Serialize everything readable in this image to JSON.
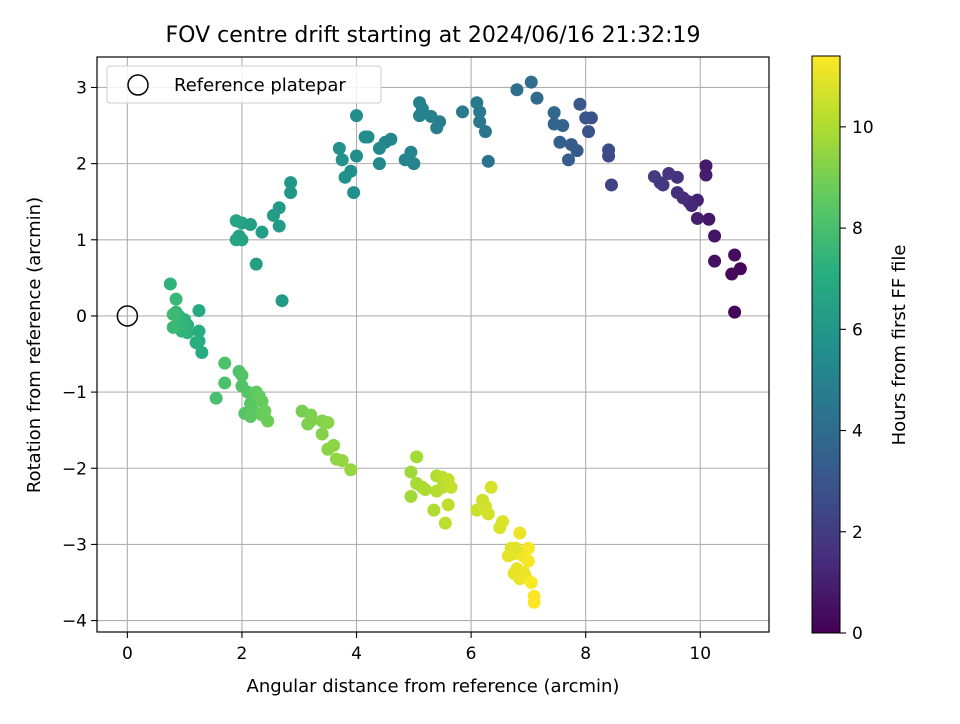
{
  "chart_data": {
    "type": "scatter",
    "title": "FOV centre drift starting at 2024/06/16 21:32:19",
    "xlabel": "Angular distance from reference (arcmin)",
    "ylabel": "Rotation from reference (arcmin)",
    "xlim": [
      -0.53,
      11.2
    ],
    "ylim": [
      -4.15,
      3.4
    ],
    "xticks": [
      0,
      2,
      4,
      6,
      8,
      10
    ],
    "yticks": [
      -4,
      -3,
      -2,
      -1,
      0,
      1,
      2,
      3
    ],
    "grid": true,
    "legend": {
      "position": "top-left",
      "entries": [
        "Reference platepar"
      ]
    },
    "reference_point": {
      "x": 0,
      "y": 0
    },
    "colorbar": {
      "label": "Hours from first FF file",
      "range": [
        0,
        11.4
      ],
      "ticks": [
        0,
        2,
        4,
        6,
        8,
        10
      ],
      "colormap": "viridis"
    },
    "points": [
      [
        10.6,
        0.05,
        0.1
      ],
      [
        10.7,
        0.62,
        0.2
      ],
      [
        10.55,
        0.55,
        0.3
      ],
      [
        10.6,
        0.8,
        0.4
      ],
      [
        10.25,
        0.72,
        0.5
      ],
      [
        10.25,
        1.05,
        0.6
      ],
      [
        10.15,
        1.27,
        0.7
      ],
      [
        10.1,
        1.97,
        0.8
      ],
      [
        10.1,
        1.85,
        0.9
      ],
      [
        9.95,
        1.28,
        1.0
      ],
      [
        9.95,
        1.52,
        1.1
      ],
      [
        9.85,
        1.45,
        1.2
      ],
      [
        9.8,
        1.5,
        1.3
      ],
      [
        9.7,
        1.55,
        1.4
      ],
      [
        9.6,
        1.62,
        1.5
      ],
      [
        9.6,
        1.82,
        1.6
      ],
      [
        9.45,
        1.87,
        1.7
      ],
      [
        9.35,
        1.72,
        1.8
      ],
      [
        9.3,
        1.75,
        1.9
      ],
      [
        9.2,
        1.83,
        2.0
      ],
      [
        8.45,
        1.72,
        2.3
      ],
      [
        8.4,
        2.1,
        2.5
      ],
      [
        8.4,
        2.18,
        2.6
      ],
      [
        8.1,
        2.6,
        2.8
      ],
      [
        8.05,
        2.42,
        2.9
      ],
      [
        8.0,
        2.6,
        3.0
      ],
      [
        7.9,
        2.78,
        3.1
      ],
      [
        7.85,
        2.17,
        3.2
      ],
      [
        7.75,
        2.25,
        3.3
      ],
      [
        7.7,
        2.05,
        3.4
      ],
      [
        7.55,
        2.28,
        3.5
      ],
      [
        7.6,
        2.5,
        3.6
      ],
      [
        7.45,
        2.52,
        3.7
      ],
      [
        7.45,
        2.67,
        3.8
      ],
      [
        7.15,
        2.86,
        3.9
      ],
      [
        7.05,
        3.07,
        4.0
      ],
      [
        6.8,
        2.97,
        4.1
      ],
      [
        6.3,
        2.03,
        4.3
      ],
      [
        6.25,
        2.42,
        4.4
      ],
      [
        6.15,
        2.55,
        4.5
      ],
      [
        6.15,
        2.68,
        4.6
      ],
      [
        6.1,
        2.8,
        4.6
      ],
      [
        5.85,
        2.68,
        4.7
      ],
      [
        5.45,
        2.55,
        4.8
      ],
      [
        5.4,
        2.47,
        4.85
      ],
      [
        5.3,
        2.62,
        4.9
      ],
      [
        5.15,
        2.72,
        4.9
      ],
      [
        5.1,
        2.8,
        4.95
      ],
      [
        5.1,
        2.63,
        5.0
      ],
      [
        5.0,
        2.0,
        5.05
      ],
      [
        4.95,
        2.15,
        5.1
      ],
      [
        4.85,
        2.05,
        5.15
      ],
      [
        4.6,
        2.32,
        5.2
      ],
      [
        4.5,
        2.28,
        5.25
      ],
      [
        4.4,
        2.2,
        5.3
      ],
      [
        4.4,
        2.0,
        5.35
      ],
      [
        4.2,
        2.35,
        5.4
      ],
      [
        4.15,
        2.35,
        5.45
      ],
      [
        4.0,
        2.63,
        5.5
      ],
      [
        4.0,
        2.1,
        5.55
      ],
      [
        3.95,
        1.62,
        5.6
      ],
      [
        3.9,
        1.9,
        5.65
      ],
      [
        3.8,
        1.82,
        5.7
      ],
      [
        3.75,
        2.05,
        5.75
      ],
      [
        3.7,
        2.2,
        5.8
      ],
      [
        2.85,
        1.75,
        6.0
      ],
      [
        2.85,
        1.62,
        6.05
      ],
      [
        2.7,
        0.2,
        6.1
      ],
      [
        2.65,
        1.42,
        6.15
      ],
      [
        2.65,
        1.18,
        6.2
      ],
      [
        2.55,
        1.32,
        6.25
      ],
      [
        2.35,
        1.1,
        6.3
      ],
      [
        2.25,
        0.68,
        6.35
      ],
      [
        2.15,
        1.2,
        6.4
      ],
      [
        2.0,
        1.0,
        6.5
      ],
      [
        2.0,
        1.22,
        6.55
      ],
      [
        1.95,
        1.05,
        6.6
      ],
      [
        1.9,
        1.0,
        6.65
      ],
      [
        1.9,
        1.25,
        6.7
      ],
      [
        1.25,
        0.07,
        6.9
      ],
      [
        1.3,
        -0.48,
        7.0
      ],
      [
        1.25,
        -0.33,
        7.05
      ],
      [
        1.25,
        -0.2,
        7.1
      ],
      [
        1.2,
        -0.35,
        7.15
      ],
      [
        1.05,
        -0.12,
        7.2
      ],
      [
        1.05,
        -0.22,
        7.25
      ],
      [
        1.0,
        -0.15,
        7.3
      ],
      [
        1.0,
        -0.05,
        7.35
      ],
      [
        0.95,
        -0.2,
        7.4
      ],
      [
        0.9,
        0.0,
        7.45
      ],
      [
        0.9,
        -0.1,
        7.5
      ],
      [
        0.85,
        0.05,
        7.55
      ],
      [
        0.85,
        0.22,
        7.6
      ],
      [
        0.8,
        -0.15,
        7.65
      ],
      [
        0.8,
        0.02,
        7.7
      ],
      [
        0.75,
        0.42,
        7.3
      ],
      [
        1.55,
        -1.08,
        8.0
      ],
      [
        1.7,
        -0.88,
        8.05
      ],
      [
        1.7,
        -0.62,
        8.1
      ],
      [
        1.95,
        -0.73,
        8.15
      ],
      [
        2.0,
        -0.92,
        8.2
      ],
      [
        2.0,
        -0.78,
        8.25
      ],
      [
        2.05,
        -1.28,
        8.3
      ],
      [
        2.1,
        -1.0,
        8.35
      ],
      [
        2.15,
        -1.15,
        8.4
      ],
      [
        2.15,
        -1.32,
        8.45
      ],
      [
        2.2,
        -1.25,
        8.5
      ],
      [
        2.25,
        -1.0,
        8.55
      ],
      [
        2.3,
        -1.05,
        8.6
      ],
      [
        2.35,
        -1.12,
        8.65
      ],
      [
        2.35,
        -1.3,
        8.7
      ],
      [
        2.4,
        -1.25,
        8.75
      ],
      [
        2.45,
        -1.38,
        8.8
      ],
      [
        3.05,
        -1.25,
        9.0
      ],
      [
        3.15,
        -1.42,
        9.05
      ],
      [
        3.2,
        -1.3,
        9.1
      ],
      [
        3.2,
        -1.38,
        9.15
      ],
      [
        3.4,
        -1.38,
        9.2
      ],
      [
        3.4,
        -1.55,
        9.25
      ],
      [
        3.5,
        -1.4,
        9.3
      ],
      [
        3.5,
        -1.75,
        9.35
      ],
      [
        3.6,
        -1.7,
        9.4
      ],
      [
        3.65,
        -1.88,
        9.45
      ],
      [
        3.75,
        -1.9,
        9.5
      ],
      [
        3.9,
        -2.02,
        9.55
      ],
      [
        4.95,
        -2.05,
        9.7
      ],
      [
        4.95,
        -2.37,
        9.75
      ],
      [
        5.05,
        -1.85,
        9.8
      ],
      [
        5.05,
        -2.2,
        9.85
      ],
      [
        5.15,
        -2.25,
        9.9
      ],
      [
        5.2,
        -2.28,
        9.95
      ],
      [
        5.35,
        -2.55,
        10.0
      ],
      [
        5.4,
        -2.1,
        10.05
      ],
      [
        5.4,
        -2.3,
        10.1
      ],
      [
        5.5,
        -2.25,
        10.15
      ],
      [
        5.5,
        -2.12,
        10.2
      ],
      [
        5.55,
        -2.72,
        10.25
      ],
      [
        5.6,
        -2.48,
        10.3
      ],
      [
        5.6,
        -2.15,
        10.35
      ],
      [
        5.65,
        -2.25,
        10.4
      ],
      [
        6.1,
        -2.55,
        10.5
      ],
      [
        6.2,
        -2.42,
        10.55
      ],
      [
        6.25,
        -2.5,
        10.6
      ],
      [
        6.3,
        -2.6,
        10.65
      ],
      [
        6.35,
        -2.25,
        10.7
      ],
      [
        6.5,
        -2.78,
        10.75
      ],
      [
        6.55,
        -2.7,
        10.8
      ],
      [
        6.7,
        -3.05,
        10.85
      ],
      [
        6.75,
        -3.12,
        10.9
      ],
      [
        6.75,
        -3.38,
        10.95
      ],
      [
        6.8,
        -3.32,
        11.0
      ],
      [
        6.85,
        -3.45,
        11.05
      ],
      [
        6.85,
        -2.85,
        11.1
      ],
      [
        6.9,
        -3.15,
        11.15
      ],
      [
        6.95,
        -3.42,
        11.2
      ],
      [
        7.0,
        -3.05,
        11.25
      ],
      [
        7.0,
        -3.22,
        11.3
      ],
      [
        7.05,
        -3.5,
        11.35
      ],
      [
        7.1,
        -3.68,
        11.4
      ],
      [
        7.1,
        -3.76,
        11.4
      ],
      [
        6.92,
        -3.37,
        11.1
      ],
      [
        6.78,
        -3.05,
        10.9
      ],
      [
        6.65,
        -3.15,
        10.95
      ]
    ]
  }
}
